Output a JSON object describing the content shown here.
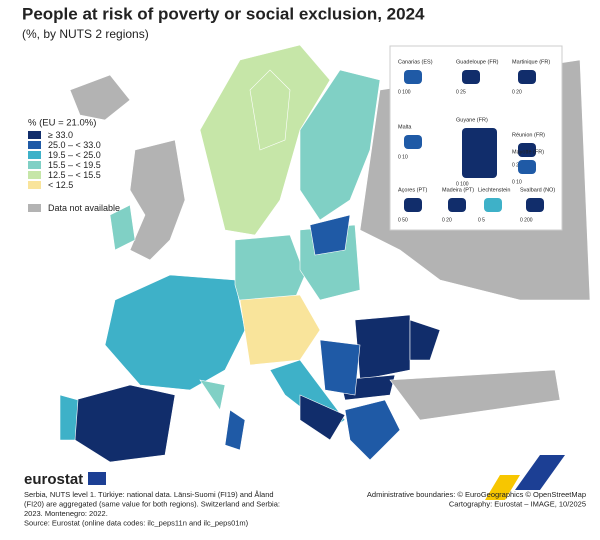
{
  "header": {
    "title": "People at risk of poverty or social exclusion, 2024",
    "subtitle": "(%, by NUTS 2 regions)"
  },
  "legend": {
    "title": "% (EU = 21.0%)",
    "items": [
      {
        "label": "≥ 33.0",
        "color": "#112d6b"
      },
      {
        "label": "25.0 – < 33.0",
        "color": "#1f5aa6"
      },
      {
        "label": "19.5 – < 25.0",
        "color": "#3eb1c8"
      },
      {
        "label": "15.5 – < 19.5",
        "color": "#80d0c5"
      },
      {
        "label": "12.5 – < 15.5",
        "color": "#c6e6a8"
      },
      {
        "label": "< 12.5",
        "color": "#f9e49b"
      }
    ],
    "na": {
      "label": "Data not available",
      "color": "#b3b3b3"
    }
  },
  "insets": [
    {
      "label": "Canarias (ES)",
      "scale": "0   100"
    },
    {
      "label": "Guadeloupe (FR)",
      "scale": "0   25"
    },
    {
      "label": "Martinique (FR)",
      "scale": "0   20"
    },
    {
      "label": "Malta",
      "scale": "0   10"
    },
    {
      "label": "Guyane (FR)",
      "scale": "0   100"
    },
    {
      "label": "Réunion (FR)",
      "scale": "0   20"
    },
    {
      "label": "Mayotte (FR)",
      "scale": "0   10"
    },
    {
      "label": "Açores (PT)",
      "scale": "0   50"
    },
    {
      "label": "Madeira (PT)",
      "scale": "0   20"
    },
    {
      "label": "Liechtenstein",
      "scale": "0   5"
    },
    {
      "label": "Svalbard (NO)",
      "scale": "0   200"
    }
  ],
  "footer": {
    "brand": "eurostat",
    "notes": [
      "Serbia, NUTS level 1. Türkiye: national data. Länsi-Suomi (FI19) and Åland",
      "(FI20) are aggregated (same value for both regions). Switzerland and Serbia:",
      "2023. Montenegro: 2022.",
      "Source: Eurostat (online data codes: ilc_peps11n and ilc_peps01m)"
    ],
    "credits": [
      "Administrative boundaries: © EuroGeographics © OpenStreetMap",
      "Cartography: Eurostat – IMAGE, 10/2025"
    ]
  }
}
